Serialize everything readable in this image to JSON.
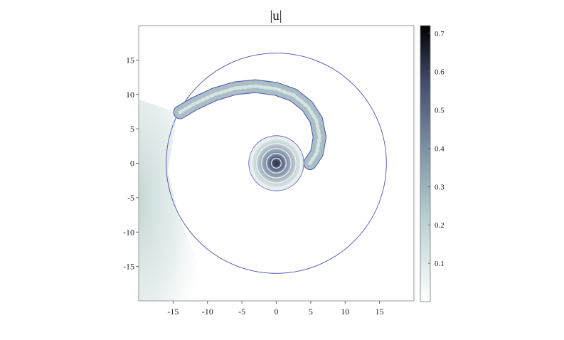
{
  "chart_data": {
    "type": "heatmap",
    "title": "|u|",
    "xlabel": "",
    "ylabel": "",
    "xlim": [
      -20,
      20
    ],
    "ylim": [
      -20,
      20
    ],
    "xticks": [
      -15,
      -10,
      -5,
      0,
      5,
      10,
      15
    ],
    "yticks": [
      15,
      10,
      5,
      0,
      -5,
      -10,
      -15
    ],
    "grid": false,
    "colorbar": {
      "min": 0,
      "max": 0.72,
      "ticks": [
        0.1,
        0.2,
        0.3,
        0.4,
        0.5,
        0.6,
        0.7
      ],
      "colormap": [
        "#ffffff",
        "#a9c5c5",
        "#5e6f8e",
        "#000000"
      ]
    },
    "outline_color": "#4b4fb8",
    "regions": {
      "outer_circle_radius": 16,
      "inner_disk_radius": 4,
      "inner_disk_peak": 0.72,
      "left_edge_wave_peak": 0.3
    },
    "spiral_centerline": [
      [
        -14.0,
        7.4
      ],
      [
        -12.0,
        8.6
      ],
      [
        -9.0,
        10.0
      ],
      [
        -6.0,
        10.9
      ],
      [
        -3.0,
        11.2
      ],
      [
        0.0,
        10.8
      ],
      [
        2.5,
        9.9
      ],
      [
        4.5,
        8.3
      ],
      [
        5.8,
        6.3
      ],
      [
        6.3,
        3.8
      ],
      [
        5.9,
        1.5
      ],
      [
        4.9,
        0.0
      ]
    ],
    "spiral_amplitude": 0.35
  }
}
